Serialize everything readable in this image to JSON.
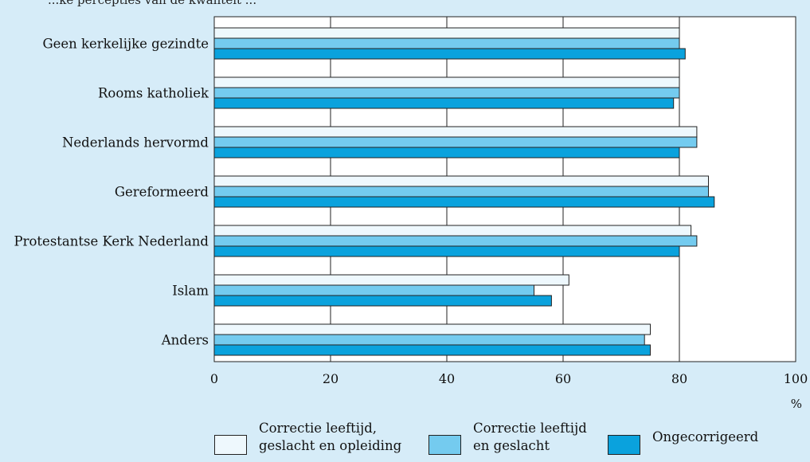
{
  "header": {
    "title": "...ke percepties van de kwaliteit ..."
  },
  "chart_data": {
    "type": "bar",
    "orientation": "horizontal",
    "categories": [
      "Geen kerkelijke gezindte",
      "Rooms katholiek",
      "Nederlands hervormd",
      "Gereformeerd",
      "Protestantse Kerk Nederland",
      "Islam",
      "Anders"
    ],
    "series": [
      {
        "name": "Correctie leeftijd, geslacht en opleiding",
        "color": "#eef8fd",
        "values": [
          80,
          80,
          83,
          85,
          82,
          61,
          75
        ]
      },
      {
        "name": "Correctie leeftijd en geslacht",
        "color": "#74cbef",
        "values": [
          80,
          80,
          83,
          85,
          83,
          55,
          74
        ]
      },
      {
        "name": "Ongecorrigeerd",
        "color": "#0aa2dd",
        "values": [
          81,
          79,
          80,
          86,
          80,
          58,
          75
        ]
      }
    ],
    "xlim": [
      0,
      100
    ],
    "xticks": [
      0,
      20,
      40,
      60,
      80,
      100
    ],
    "xlabel": "%",
    "grid": true,
    "legend_position": "bottom"
  },
  "legend": {
    "items": [
      {
        "lines": [
          "Correctie leeftijd,",
          "geslacht en opleiding"
        ],
        "color": "#eef8fd"
      },
      {
        "lines": [
          "Correctie leeftijd",
          "en geslacht"
        ],
        "color": "#74cbef"
      },
      {
        "lines": [
          "Ongecorrigeerd"
        ],
        "color": "#0aa2dd"
      }
    ]
  }
}
